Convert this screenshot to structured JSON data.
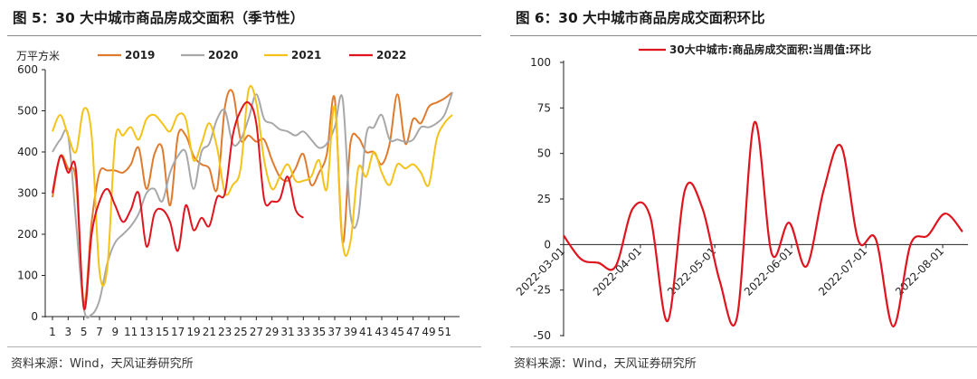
{
  "left": {
    "title": "图 5：30 大中城市商品房成交面积（季节性）",
    "source": "资料来源：Wind，天风证券研究所",
    "chart_data": {
      "type": "line",
      "unit_label": "万平方米",
      "ylim": [
        0,
        600
      ],
      "y_ticks": [
        0,
        100,
        200,
        300,
        400,
        500,
        600
      ],
      "x_tick_labels": [
        "1",
        "3",
        "5",
        "7",
        "9",
        "11",
        "13",
        "15",
        "17",
        "19",
        "21",
        "23",
        "25",
        "27",
        "29",
        "31",
        "33",
        "35",
        "37",
        "39",
        "41",
        "43",
        "45",
        "47",
        "49",
        "51"
      ],
      "grid": false,
      "legend_position": "top",
      "series": [
        {
          "name": "2019",
          "color": "#E07B2E",
          "values": [
            290,
            390,
            360,
            330,
            30,
            230,
            350,
            355,
            355,
            350,
            370,
            410,
            310,
            395,
            410,
            270,
            440,
            440,
            390,
            370,
            360,
            310,
            510,
            545,
            430,
            440,
            425,
            430,
            380,
            340,
            330,
            360,
            395,
            320,
            350,
            395,
            530,
            180,
            420,
            435,
            400,
            400,
            370,
            420,
            540,
            420,
            480,
            470,
            510,
            520,
            530,
            545
          ]
        },
        {
          "name": "2020",
          "color": "#A8A8A8",
          "values": [
            400,
            430,
            440,
            230,
            20,
            5,
            40,
            130,
            180,
            200,
            220,
            250,
            300,
            310,
            280,
            350,
            390,
            400,
            310,
            400,
            420,
            480,
            500,
            420,
            430,
            480,
            540,
            480,
            470,
            455,
            450,
            440,
            450,
            430,
            410,
            420,
            460,
            530,
            250,
            240,
            440,
            460,
            490,
            430,
            430,
            425,
            430,
            460,
            460,
            470,
            490,
            545
          ]
        },
        {
          "name": "2021",
          "color": "#F5C318",
          "values": [
            450,
            490,
            440,
            400,
            505,
            440,
            110,
            120,
            430,
            440,
            460,
            430,
            480,
            490,
            470,
            450,
            490,
            480,
            380,
            420,
            470,
            410,
            300,
            320,
            360,
            550,
            520,
            380,
            310,
            340,
            370,
            330,
            330,
            340,
            380,
            310,
            510,
            180,
            180,
            360,
            340,
            400,
            350,
            320,
            370,
            360,
            370,
            350,
            320,
            430,
            470,
            490
          ]
        },
        {
          "name": "2022",
          "color": "#E0141E",
          "values": [
            300,
            390,
            350,
            355,
            20,
            200,
            280,
            310,
            270,
            230,
            260,
            300,
            170,
            250,
            260,
            230,
            160,
            270,
            210,
            240,
            220,
            290,
            300,
            440,
            500,
            520,
            470,
            285,
            280,
            285,
            340,
            260,
            240
          ]
        }
      ]
    }
  },
  "right": {
    "title": "图 6：30 大中城市商品房成交面积环比",
    "source": "资料来源：Wind，天风证券研究所",
    "chart_data": {
      "type": "line",
      "ylim": [
        -50,
        100
      ],
      "y_ticks": [
        -50,
        -25,
        0,
        25,
        50,
        75,
        100
      ],
      "x_tick_labels": [
        "2022-03-01",
        "2022-04-01",
        "2022-05-01",
        "2022-06-01",
        "2022-07-01",
        "2022-08-01"
      ],
      "grid": false,
      "legend_position": "top",
      "series": [
        {
          "name": "30大中城市:商品房成交面积:当周值:环比",
          "color": "#E0141E",
          "x": [
            "2022-03-01",
            "2022-03-08",
            "2022-03-15",
            "2022-03-22",
            "2022-03-29",
            "2022-04-05",
            "2022-04-12",
            "2022-04-19",
            "2022-04-26",
            "2022-05-03",
            "2022-05-10",
            "2022-05-17",
            "2022-05-24",
            "2022-05-31",
            "2022-06-07",
            "2022-06-14",
            "2022-06-21",
            "2022-06-28",
            "2022-07-05",
            "2022-07-12",
            "2022-07-19",
            "2022-07-26",
            "2022-08-02",
            "2022-08-09"
          ],
          "values": [
            5,
            -8,
            -10,
            -12,
            20,
            15,
            -42,
            30,
            20,
            -20,
            -40,
            67,
            -5,
            12,
            -12,
            30,
            54,
            2,
            3,
            -45,
            0,
            5,
            17,
            7
          ]
        }
      ]
    }
  }
}
